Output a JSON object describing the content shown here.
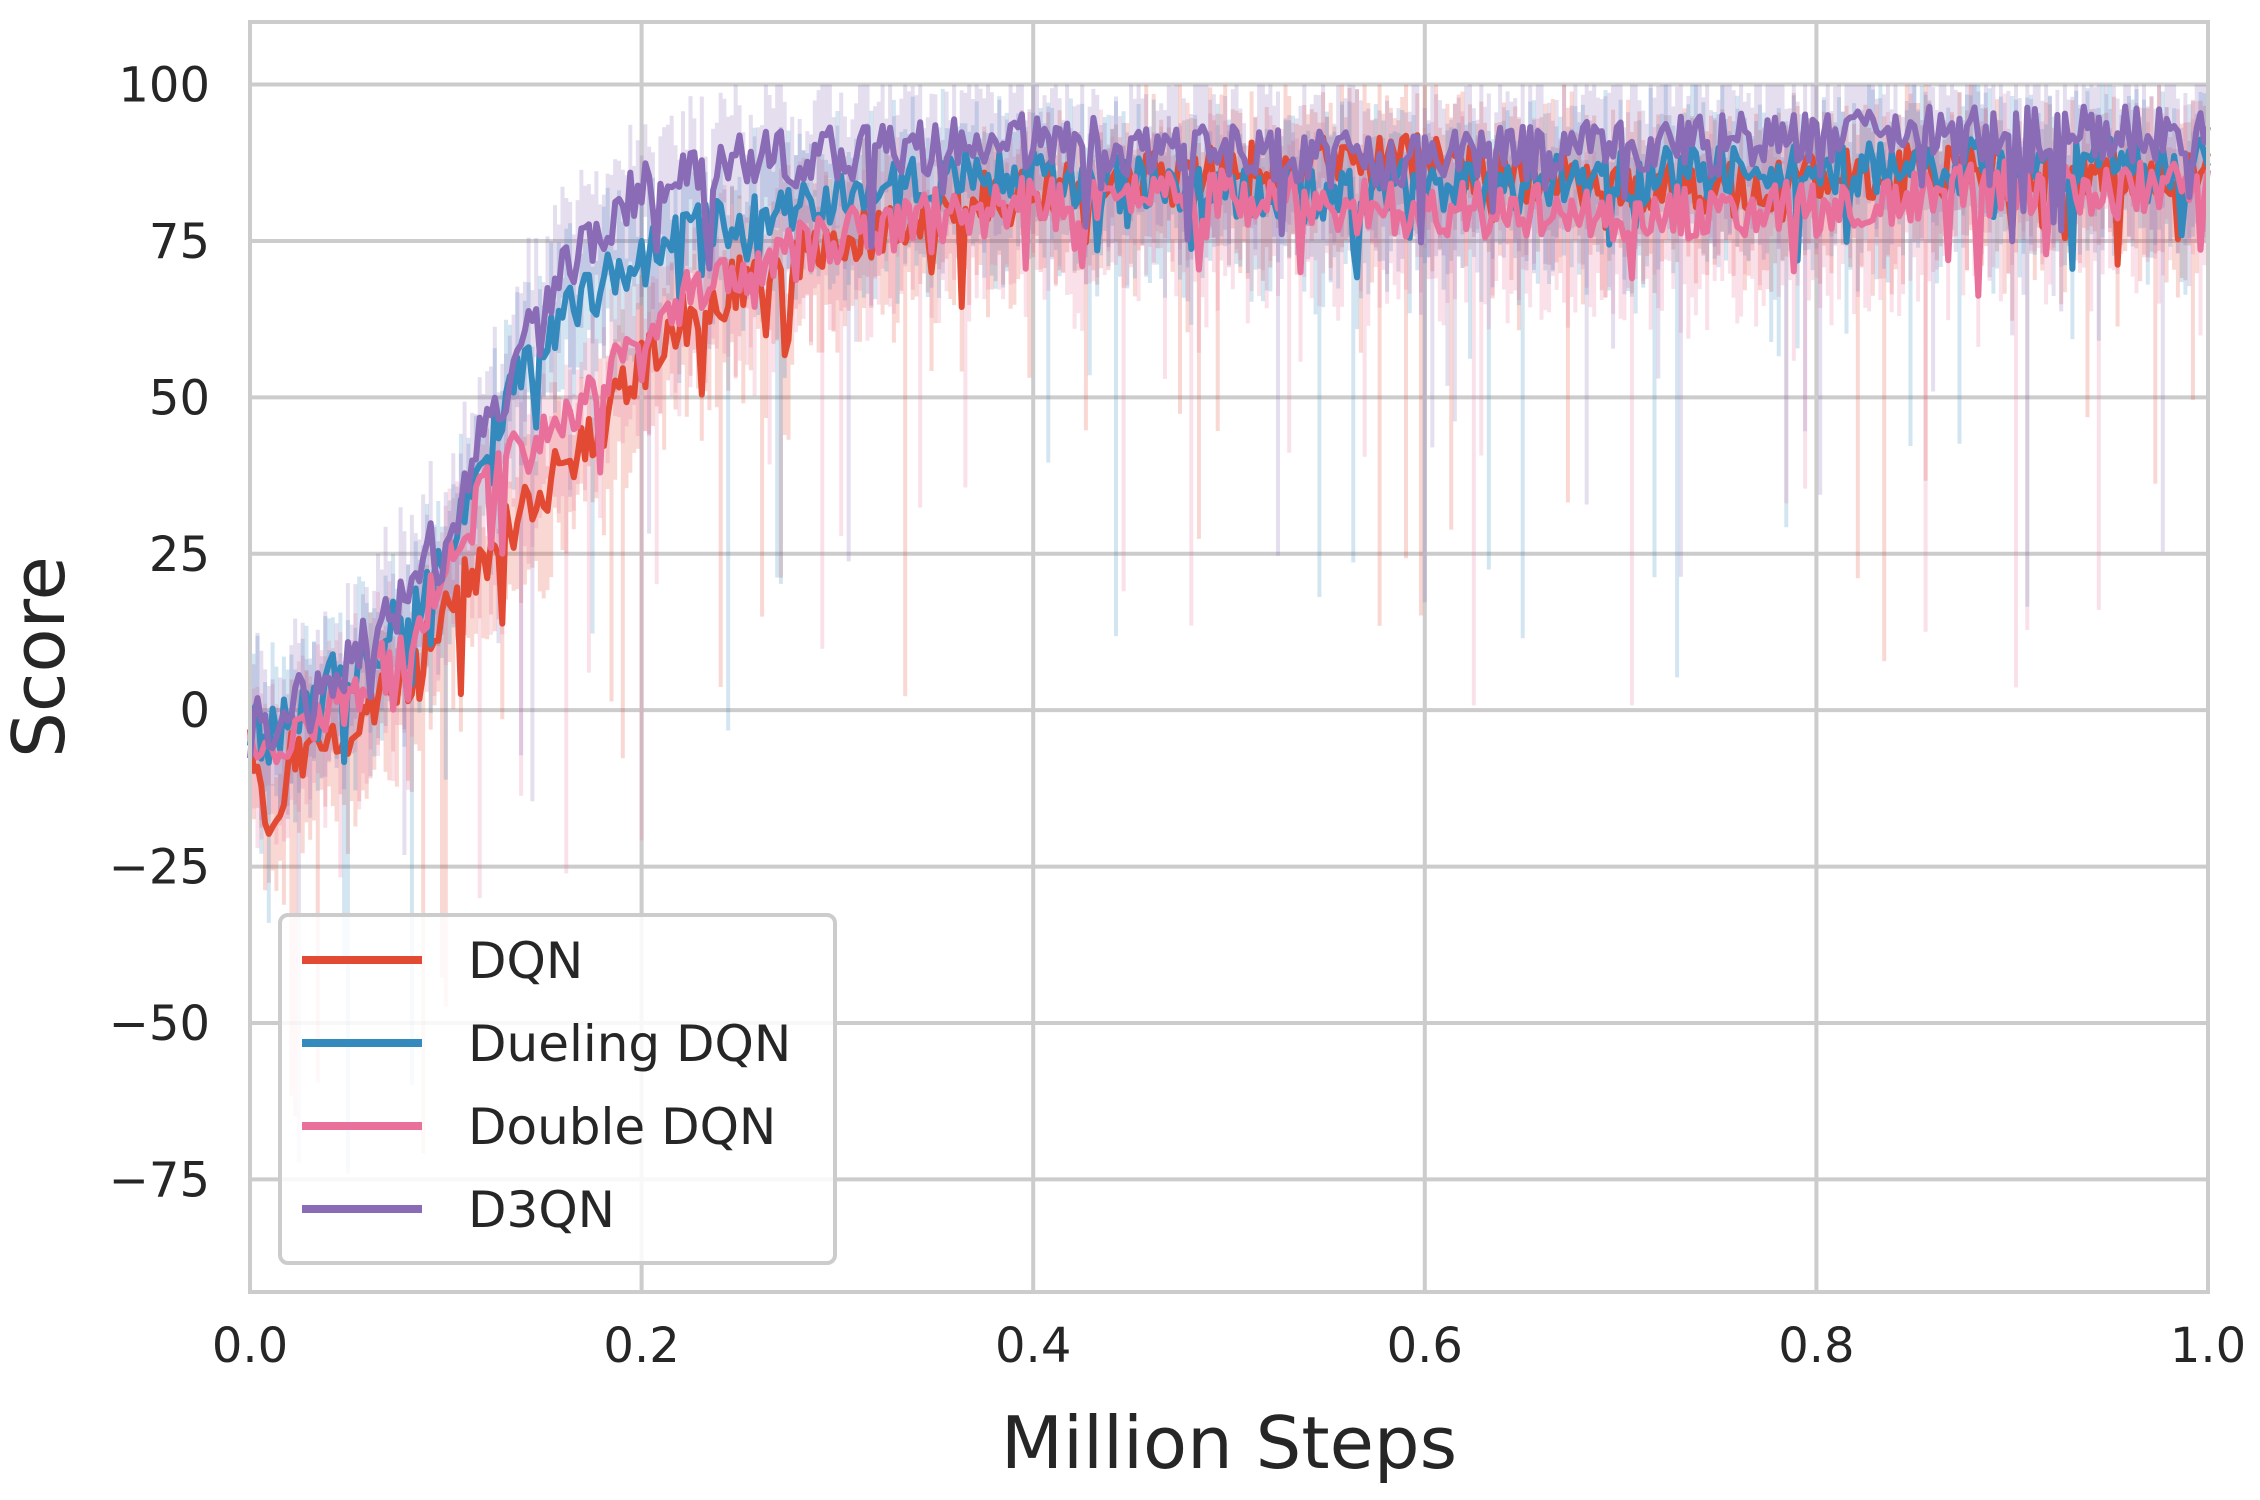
{
  "chart_data": {
    "type": "line",
    "xlabel": "Million Steps",
    "ylabel": "Score",
    "xlim": [
      0.0,
      1.0
    ],
    "ylim": [
      -93,
      110
    ],
    "xticks": [
      0.0,
      0.2,
      0.4,
      0.6,
      0.8,
      1.0
    ],
    "xtick_labels": [
      "0.0",
      "0.2",
      "0.4",
      "0.6",
      "0.8",
      "1.0"
    ],
    "yticks": [
      100,
      75,
      50,
      25,
      0,
      -25,
      -50,
      -75
    ],
    "ytick_labels": [
      "100",
      "75",
      "50",
      "25",
      "0",
      "−25",
      "−50",
      "−75"
    ],
    "grid": true,
    "legend_position": "lower-left",
    "shaded_band": "variability across runs (lighter band around each line)",
    "series": [
      {
        "name": "DQN",
        "color": "#e24a33",
        "x": [
          0.0,
          0.01,
          0.02,
          0.05,
          0.08,
          0.1,
          0.12,
          0.15,
          0.18,
          0.2,
          0.22,
          0.25,
          0.3,
          0.35,
          0.4,
          0.45,
          0.5,
          0.55,
          0.6,
          0.65,
          0.7,
          0.75,
          0.8,
          0.85,
          0.9,
          0.95,
          1.0
        ],
        "y": [
          -5,
          -20,
          -8,
          -3,
          5,
          15,
          25,
          35,
          45,
          55,
          62,
          68,
          75,
          80,
          83,
          85,
          86,
          88,
          88,
          85,
          84,
          83,
          85,
          86,
          86,
          85,
          86
        ]
      },
      {
        "name": "Dueling DQN",
        "color": "#348abd",
        "x": [
          0.0,
          0.01,
          0.02,
          0.05,
          0.08,
          0.1,
          0.12,
          0.15,
          0.18,
          0.2,
          0.22,
          0.25,
          0.3,
          0.35,
          0.4,
          0.45,
          0.5,
          0.55,
          0.6,
          0.65,
          0.7,
          0.75,
          0.8,
          0.85,
          0.9,
          0.95,
          1.0
        ],
        "y": [
          -2,
          -5,
          0,
          6,
          15,
          25,
          42,
          60,
          68,
          72,
          76,
          78,
          82,
          85,
          85,
          84,
          82,
          82,
          84,
          84,
          85,
          86,
          86,
          87,
          87,
          87,
          88
        ]
      },
      {
        "name": "Double DQN",
        "color": "#e8709a",
        "x": [
          0.0,
          0.01,
          0.02,
          0.05,
          0.08,
          0.1,
          0.12,
          0.15,
          0.18,
          0.2,
          0.22,
          0.25,
          0.3,
          0.35,
          0.4,
          0.45,
          0.5,
          0.55,
          0.6,
          0.65,
          0.7,
          0.75,
          0.8,
          0.85,
          0.9,
          0.95,
          1.0
        ],
        "y": [
          -4,
          -8,
          -5,
          2,
          10,
          22,
          35,
          45,
          52,
          58,
          66,
          70,
          76,
          79,
          81,
          82,
          82,
          81,
          80,
          80,
          79,
          80,
          80,
          82,
          84,
          83,
          84
        ]
      },
      {
        "name": "D3QN",
        "color": "#8a6bb5",
        "x": [
          0.0,
          0.01,
          0.02,
          0.05,
          0.08,
          0.1,
          0.12,
          0.15,
          0.18,
          0.2,
          0.22,
          0.25,
          0.3,
          0.35,
          0.4,
          0.45,
          0.5,
          0.55,
          0.6,
          0.65,
          0.7,
          0.75,
          0.8,
          0.85,
          0.9,
          0.95,
          1.0
        ],
        "y": [
          -2,
          -3,
          0,
          8,
          18,
          30,
          45,
          65,
          78,
          83,
          86,
          88,
          89,
          90,
          91,
          90,
          89,
          88,
          88,
          89,
          90,
          91,
          91,
          92,
          92,
          92,
          92
        ]
      }
    ]
  }
}
